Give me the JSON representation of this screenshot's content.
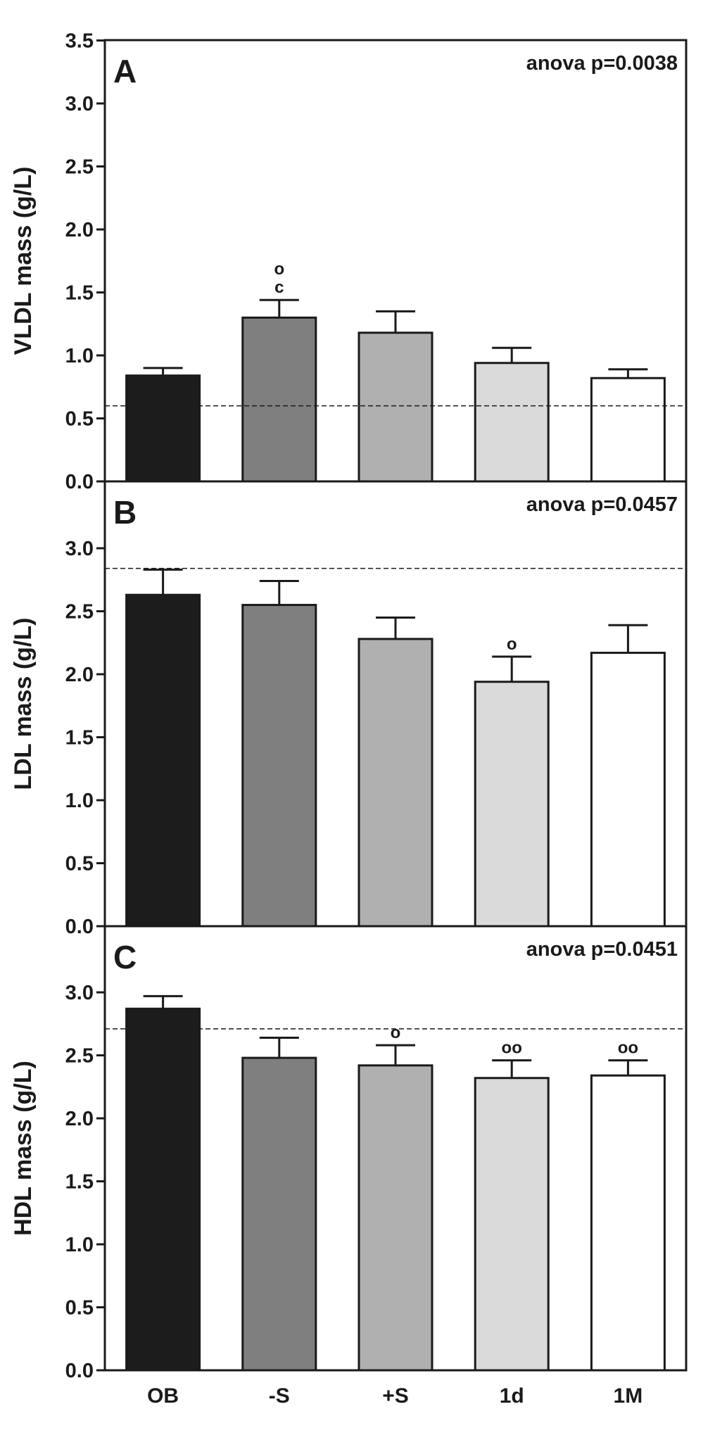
{
  "chart_data": [
    {
      "type": "bar",
      "panel_label": "A",
      "ylabel": "VLDL mass (g/L)",
      "ylim": [
        0,
        3.5
      ],
      "yticks": [
        "0.0",
        "0.5",
        "1.0",
        "1.5",
        "2.0",
        "2.5",
        "3.0",
        "3.5"
      ],
      "annotation": "anova p=0.0038",
      "reference_line": 0.6,
      "categories": [
        "OB",
        "-S",
        "+S",
        "1d",
        "1M"
      ],
      "values": [
        0.84,
        1.3,
        1.18,
        0.94,
        0.82
      ],
      "errors": [
        0.06,
        0.14,
        0.17,
        0.12,
        0.07
      ],
      "bar_colors": [
        "#1c1c1c",
        "#7f7f7f",
        "#b0b0b0",
        "#dadada",
        "#ffffff"
      ],
      "significance": [
        "",
        "o\nc",
        "",
        "",
        ""
      ]
    },
    {
      "type": "bar",
      "panel_label": "B",
      "ylabel": "LDL mass (g/L)",
      "ylim": [
        0,
        3.5
      ],
      "yticks": [
        "0.0",
        "0.5",
        "1.0",
        "1.5",
        "2.0",
        "2.5",
        "3.0"
      ],
      "annotation": "anova p=0.0457",
      "reference_line": 2.84,
      "categories": [
        "OB",
        "-S",
        "+S",
        "1d",
        "1M"
      ],
      "values": [
        2.63,
        2.55,
        2.28,
        1.94,
        2.17
      ],
      "errors": [
        0.2,
        0.19,
        0.17,
        0.2,
        0.22
      ],
      "bar_colors": [
        "#1c1c1c",
        "#7f7f7f",
        "#b0b0b0",
        "#dadada",
        "#ffffff"
      ],
      "significance": [
        "",
        "",
        "",
        "o",
        ""
      ]
    },
    {
      "type": "bar",
      "panel_label": "C",
      "ylabel": "HDL mass (g/L)",
      "ylim": [
        0,
        3.5
      ],
      "yticks": [
        "0.0",
        "0.5",
        "1.0",
        "1.5",
        "2.0",
        "2.5",
        "3.0"
      ],
      "annotation": "anova p=0.0451",
      "reference_line": 2.71,
      "categories": [
        "OB",
        "-S",
        "+S",
        "1d",
        "1M"
      ],
      "values": [
        2.87,
        2.48,
        2.42,
        2.32,
        2.34
      ],
      "errors": [
        0.1,
        0.16,
        0.16,
        0.14,
        0.12
      ],
      "bar_colors": [
        "#1c1c1c",
        "#7f7f7f",
        "#b0b0b0",
        "#dadada",
        "#ffffff"
      ],
      "significance": [
        "",
        "",
        "o",
        "oo",
        "oo"
      ]
    }
  ]
}
